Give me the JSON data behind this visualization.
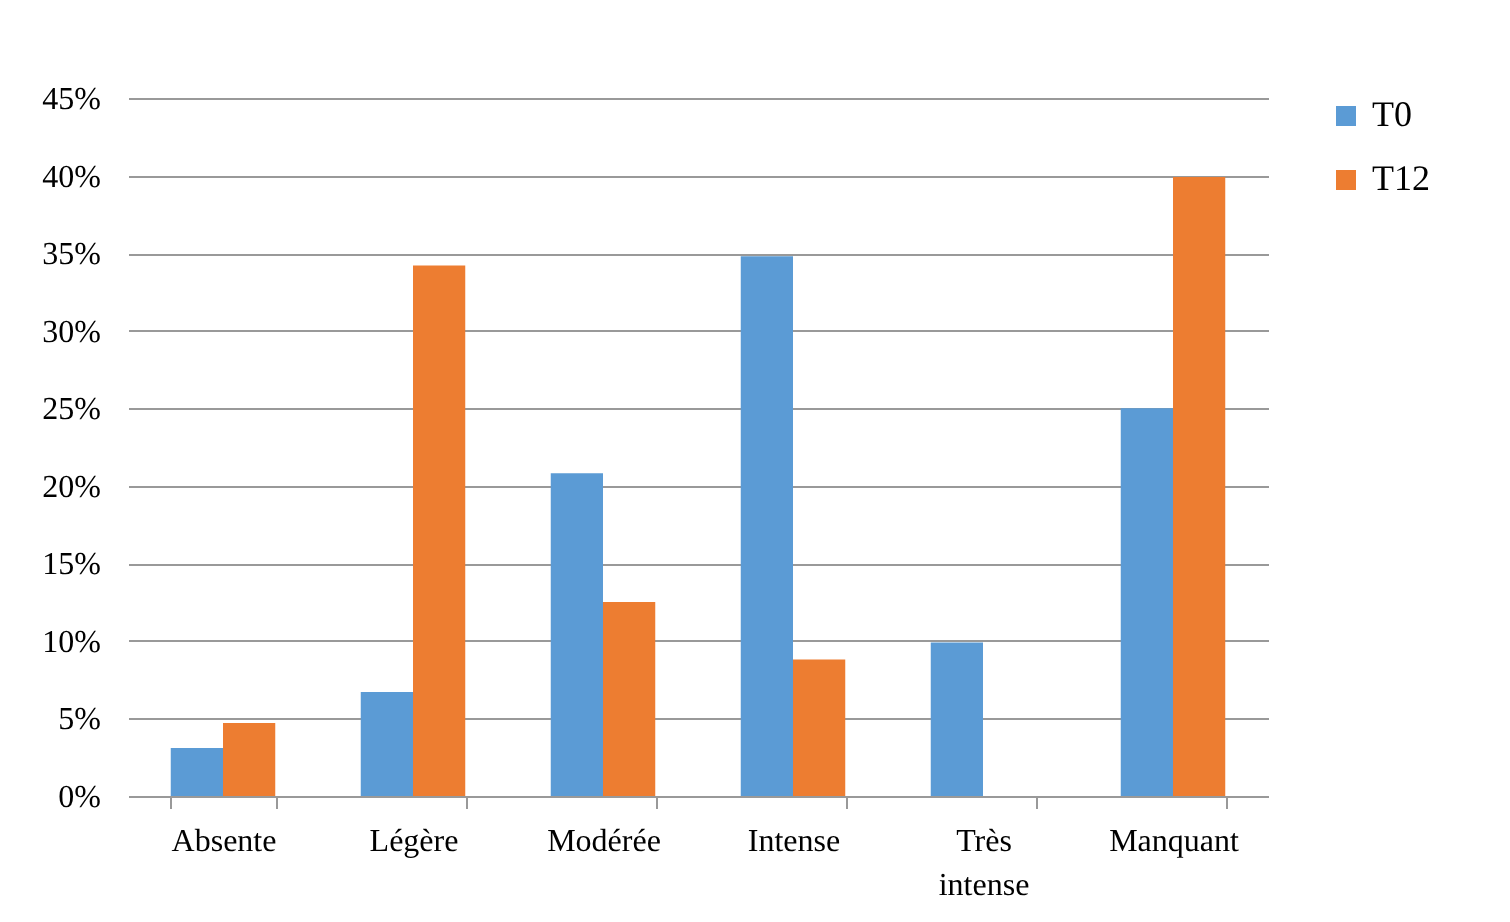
{
  "chart_data": {
    "type": "bar",
    "categories": [
      "Absente",
      "Légère",
      "Modérée",
      "Intense",
      "Très intense",
      "Manquant"
    ],
    "series": [
      {
        "name": "T0",
        "color": "#5b9bd5",
        "values": [
          3.1,
          6.7,
          20.8,
          34.8,
          9.9,
          25.0
        ]
      },
      {
        "name": "T12",
        "color": "#ed7d31",
        "values": [
          4.7,
          34.2,
          12.5,
          8.8,
          0,
          39.9
        ]
      }
    ],
    "ylim": [
      0,
      45
    ],
    "yticks": [
      {
        "value": 0,
        "label": "0%"
      },
      {
        "value": 5,
        "label": "5%"
      },
      {
        "value": 10,
        "label": "10%"
      },
      {
        "value": 15,
        "label": "15%"
      },
      {
        "value": 20,
        "label": "20%"
      },
      {
        "value": 25,
        "label": "25%"
      },
      {
        "value": 30,
        "label": "30%"
      },
      {
        "value": 35,
        "label": "35%"
      },
      {
        "value": 40,
        "label": "40%"
      },
      {
        "value": 45,
        "label": "45%"
      }
    ],
    "grid": "y",
    "legend": "right"
  }
}
